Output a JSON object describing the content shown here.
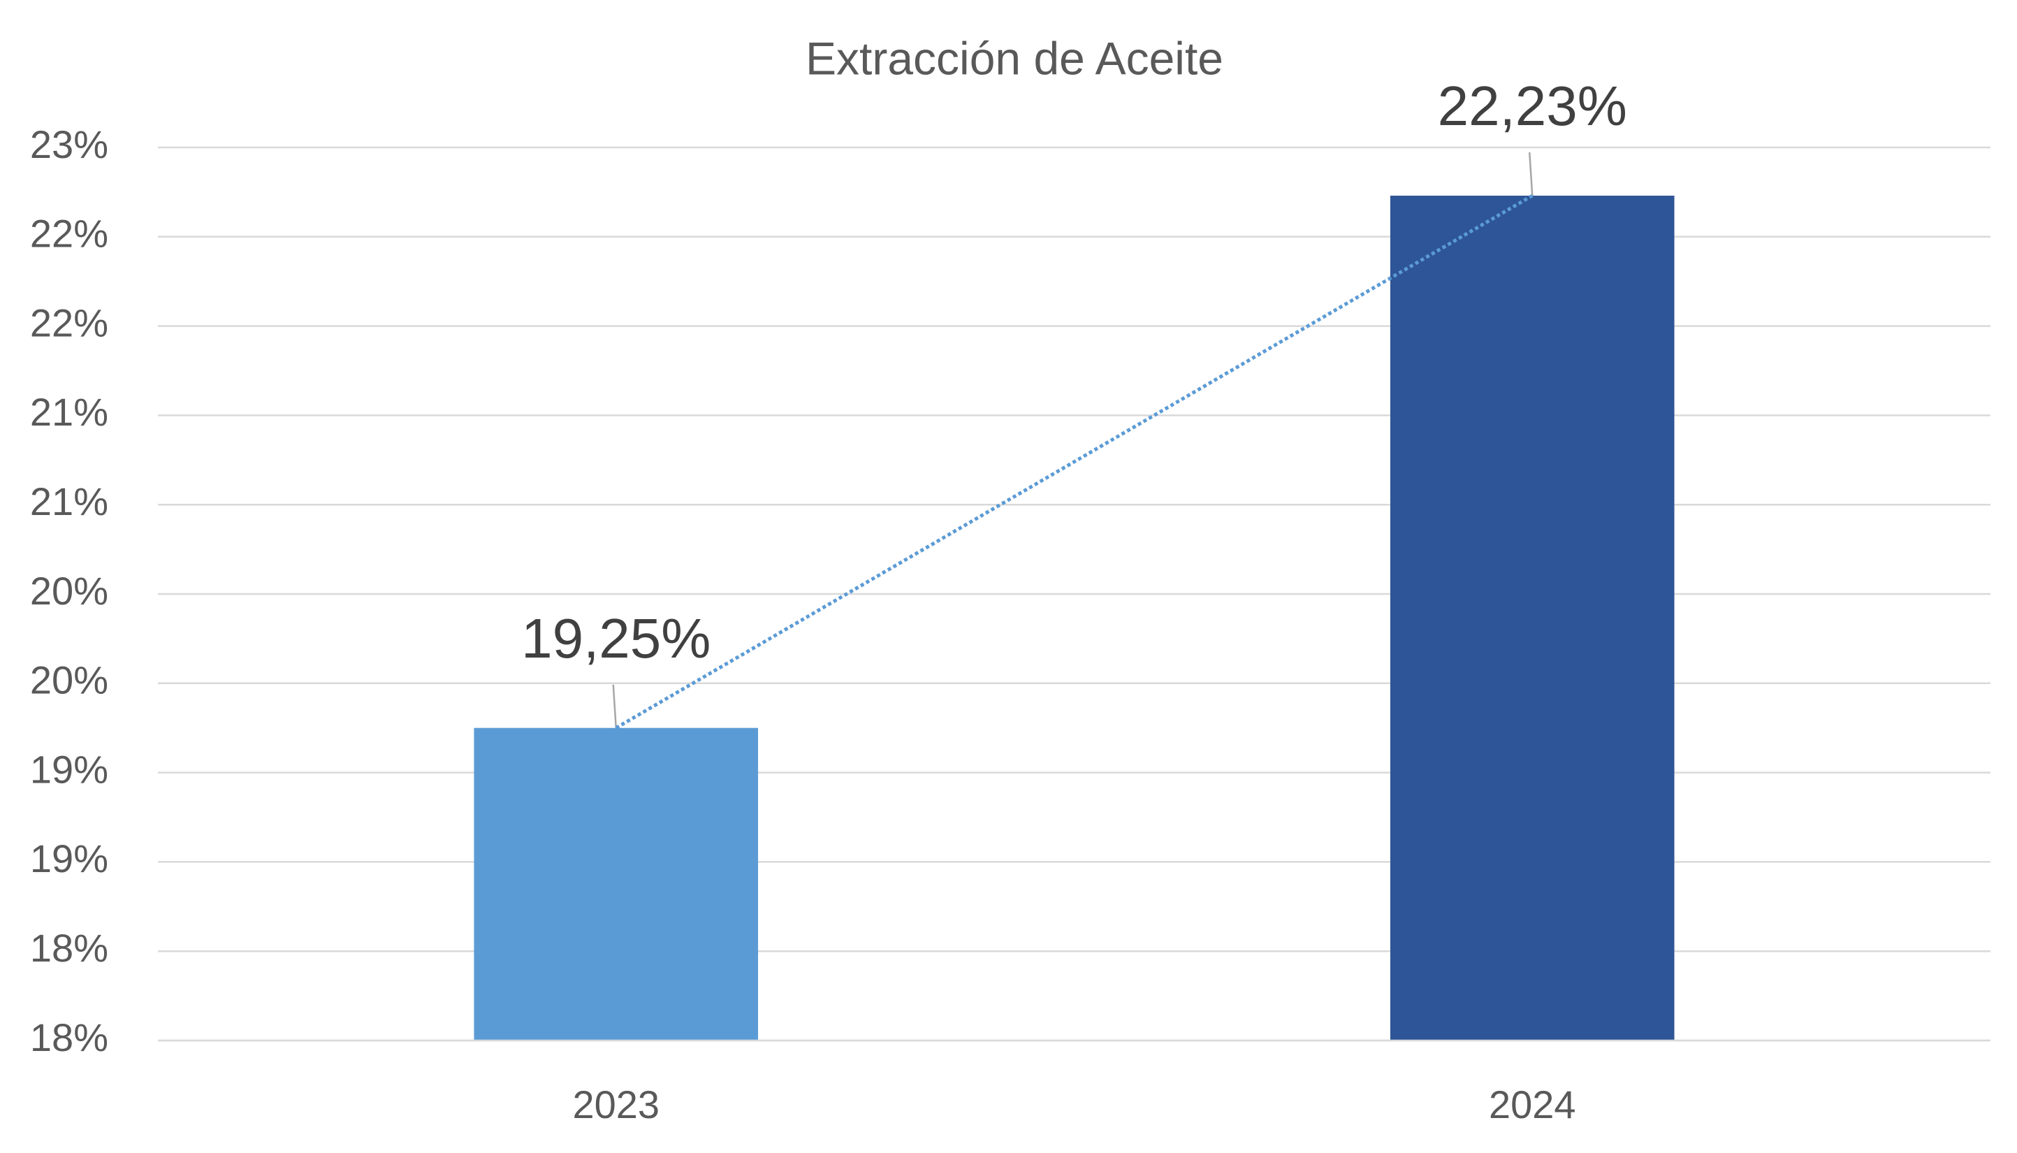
{
  "chart_data": {
    "type": "bar",
    "title": "Extracción de Aceite",
    "categories": [
      "2023",
      "2024"
    ],
    "values": [
      19.25,
      22.23
    ],
    "value_labels": [
      "19,25%",
      "22,23%"
    ],
    "colors": [
      "#5b9bd5",
      "#2e5597"
    ],
    "ylim": [
      17.5,
      22.5
    ],
    "yticks": [
      {
        "value": 17.5,
        "label": "18%"
      },
      {
        "value": 18,
        "label": "18%"
      },
      {
        "value": 18.5,
        "label": "19%"
      },
      {
        "value": 19,
        "label": "19%"
      },
      {
        "value": 19.5,
        "label": "20%"
      },
      {
        "value": 20,
        "label": "20%"
      },
      {
        "value": 20.5,
        "label": "21%"
      },
      {
        "value": 21,
        "label": "21%"
      },
      {
        "value": 21.5,
        "label": "22%"
      },
      {
        "value": 22,
        "label": "22%"
      },
      {
        "value": 22.5,
        "label": "23%"
      }
    ],
    "grid": true,
    "trendline": true,
    "trendline_color": "#5b9bd5"
  }
}
